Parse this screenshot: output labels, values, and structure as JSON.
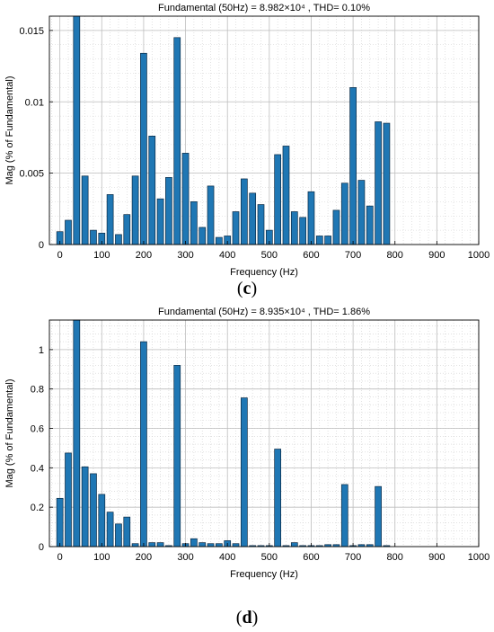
{
  "chart_data": [
    {
      "type": "bar",
      "panel_label": "c",
      "title": "Fundamental (50Hz) = 8.982×10⁴ , THD= 0.10%",
      "xlabel": "Frequency (Hz)",
      "ylabel": "Mag (% of Fundamental)",
      "xlim": [
        -25,
        1000
      ],
      "ylim": [
        0,
        0.016
      ],
      "xticks": [
        0,
        100,
        200,
        300,
        400,
        500,
        600,
        700,
        800,
        900,
        1000
      ],
      "yticks": [
        0,
        0.005,
        0.01,
        0.015
      ],
      "ytick_labels": [
        "0",
        "0.005",
        "0.01",
        "0.015"
      ],
      "grid": true,
      "bar_color": "#1f77b4",
      "x": [
        0,
        20,
        40,
        60,
        80,
        100,
        120,
        140,
        160,
        180,
        200,
        220,
        240,
        260,
        280,
        300,
        320,
        340,
        360,
        380,
        400,
        420,
        440,
        460,
        480,
        500,
        520,
        540,
        560,
        580,
        600,
        620,
        640,
        660,
        680,
        700,
        720,
        740,
        760,
        780,
        800,
        820,
        840,
        860,
        880,
        900,
        920,
        940,
        960
      ],
      "values": [
        0.0009,
        0.0017,
        0.016,
        0.0048,
        0.001,
        0.0008,
        0.0035,
        0.0007,
        0.0021,
        0.0048,
        0.0134,
        0.0076,
        0.0032,
        0.0047,
        0.0145,
        0.0064,
        0.003,
        0.0012,
        0.0041,
        0.0005,
        0.0006,
        0.0023,
        0.0046,
        0.0036,
        0.0028,
        0.001,
        0.0063,
        0.0069,
        0.0023,
        0.0019,
        0.0037,
        0.0006,
        0.0006,
        0.0024,
        0.0043,
        0.011,
        0.0045,
        0.0027,
        0.0086,
        0.0085,
        0,
        0,
        0,
        0,
        0,
        0,
        0,
        0,
        0
      ]
    },
    {
      "type": "bar",
      "panel_label": "d",
      "title": "Fundamental (50Hz) = 8.935×10⁴ , THD= 1.86%",
      "xlabel": "Frequency (Hz)",
      "ylabel": "Mag (% of Fundamental)",
      "xlim": [
        -25,
        1000
      ],
      "ylim": [
        0,
        1.15
      ],
      "xticks": [
        0,
        100,
        200,
        300,
        400,
        500,
        600,
        700,
        800,
        900,
        1000
      ],
      "yticks": [
        0,
        0.2,
        0.4,
        0.6,
        0.8,
        1
      ],
      "ytick_labels": [
        "0",
        "0.2",
        "0.4",
        "0.6",
        "0.8",
        "1"
      ],
      "grid": true,
      "bar_color": "#1f77b4",
      "x": [
        0,
        20,
        40,
        60,
        80,
        100,
        120,
        140,
        160,
        180,
        200,
        220,
        240,
        260,
        280,
        300,
        320,
        340,
        360,
        380,
        400,
        420,
        440,
        460,
        480,
        500,
        520,
        540,
        560,
        580,
        600,
        620,
        640,
        660,
        680,
        700,
        720,
        740,
        760,
        780,
        800,
        820,
        840,
        860,
        880,
        900,
        920,
        940,
        960
      ],
      "values": [
        0.245,
        0.475,
        1.15,
        0.405,
        0.37,
        0.265,
        0.175,
        0.115,
        0.15,
        0.015,
        1.04,
        0.02,
        0.02,
        0.005,
        0.92,
        0.015,
        0.04,
        0.02,
        0.015,
        0.015,
        0.03,
        0.015,
        0.755,
        0.005,
        0.005,
        0.005,
        0.495,
        0.005,
        0.02,
        0.005,
        0.005,
        0.005,
        0.01,
        0.01,
        0.315,
        0.005,
        0.01,
        0.01,
        0.305,
        0.005,
        0,
        0,
        0,
        0,
        0,
        0,
        0,
        0,
        0
      ]
    }
  ]
}
